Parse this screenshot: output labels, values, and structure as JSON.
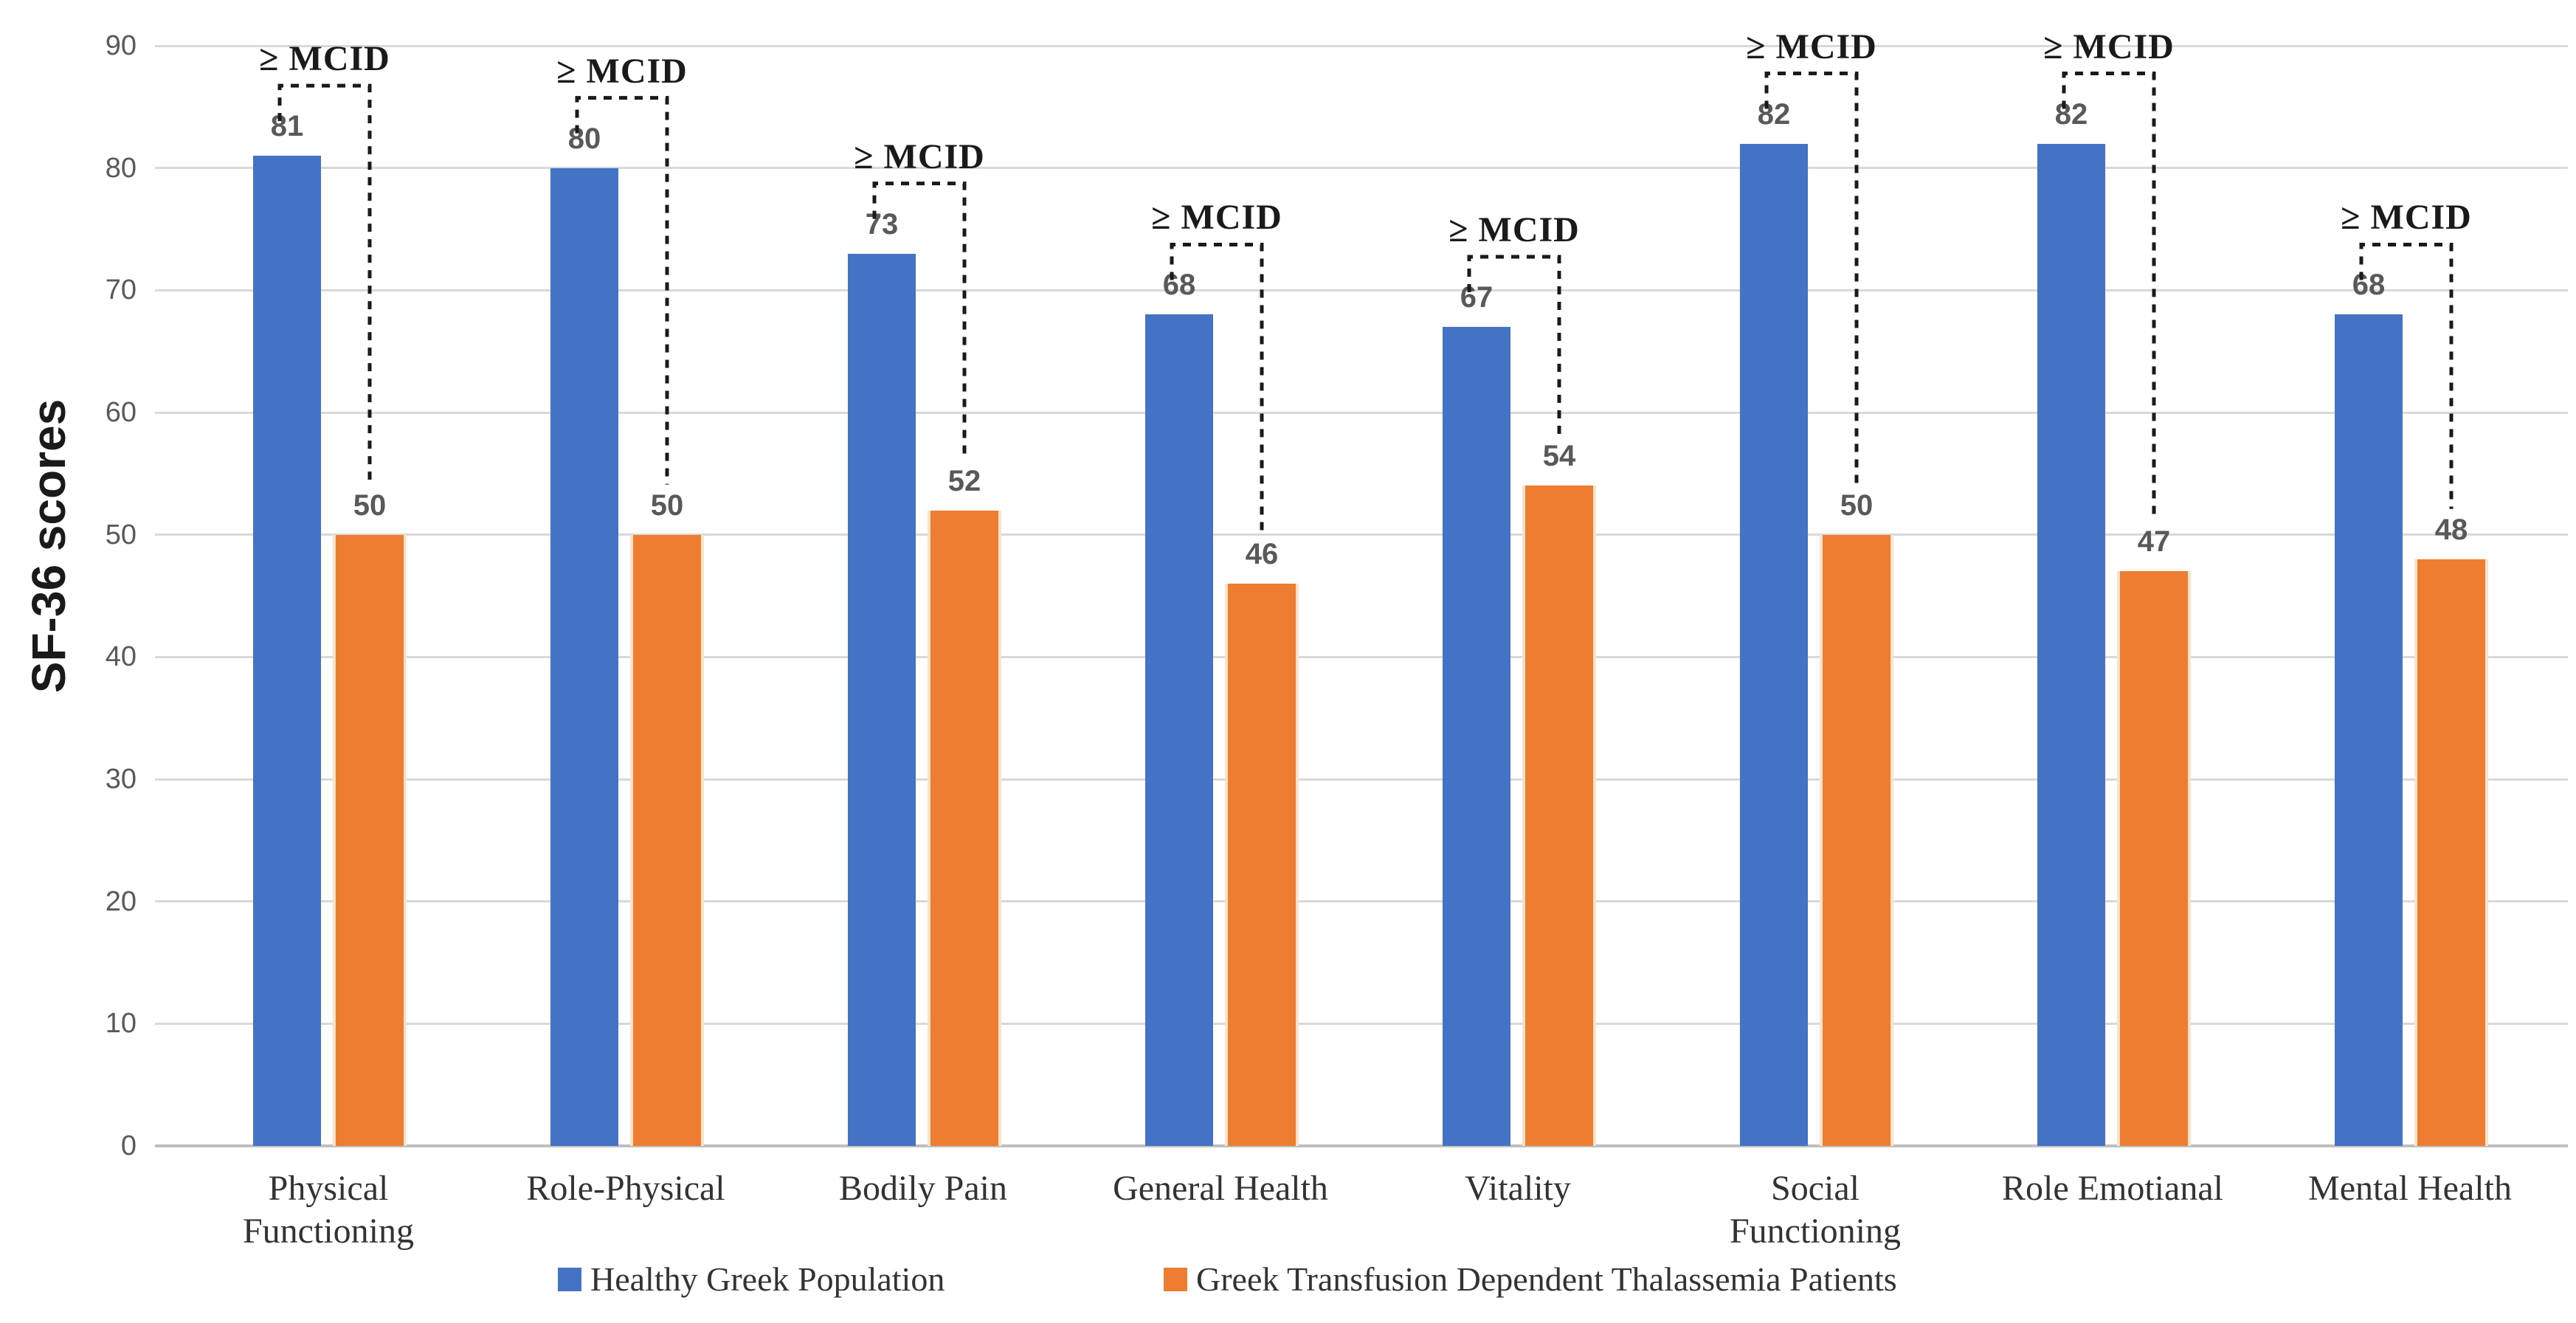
{
  "chart_data": {
    "type": "bar",
    "title": "",
    "ylabel": "SF-36 scores",
    "xlabel": "",
    "ylim": [
      0,
      90
    ],
    "yticks": [
      0,
      10,
      20,
      30,
      40,
      50,
      60,
      70,
      80,
      90
    ],
    "grid": true,
    "legend_position": "bottom",
    "categories": [
      "Physical\nFunctioning",
      "Role-Physical",
      "Bodily Pain",
      "General Health",
      "Vitality",
      "Social\nFunctioning",
      "Role Emotianal",
      "Mental Health"
    ],
    "series": [
      {
        "name": "Healthy Greek Population",
        "color": "#4472C4",
        "values": [
          81,
          80,
          73,
          68,
          67,
          82,
          82,
          68
        ]
      },
      {
        "name": "Greek Transfusion Dependent Thalassemia Patients",
        "color": "#ED7D31",
        "values": [
          50,
          50,
          52,
          46,
          54,
          50,
          47,
          48
        ]
      }
    ],
    "annotations": {
      "label": "≥ MCID",
      "applies_to": "every category pair",
      "style": "dashed bracket from healthy bar to patient bar"
    }
  },
  "colors": {
    "gridline": "#d9d9d9",
    "axis_line": "#bfbfbf",
    "tick_text": "#595959",
    "value_text": "#595959",
    "category_text": "#333333",
    "annotation_text": "#1a1a1a",
    "bracket": "#1a1a1a",
    "background": "#ffffff"
  }
}
